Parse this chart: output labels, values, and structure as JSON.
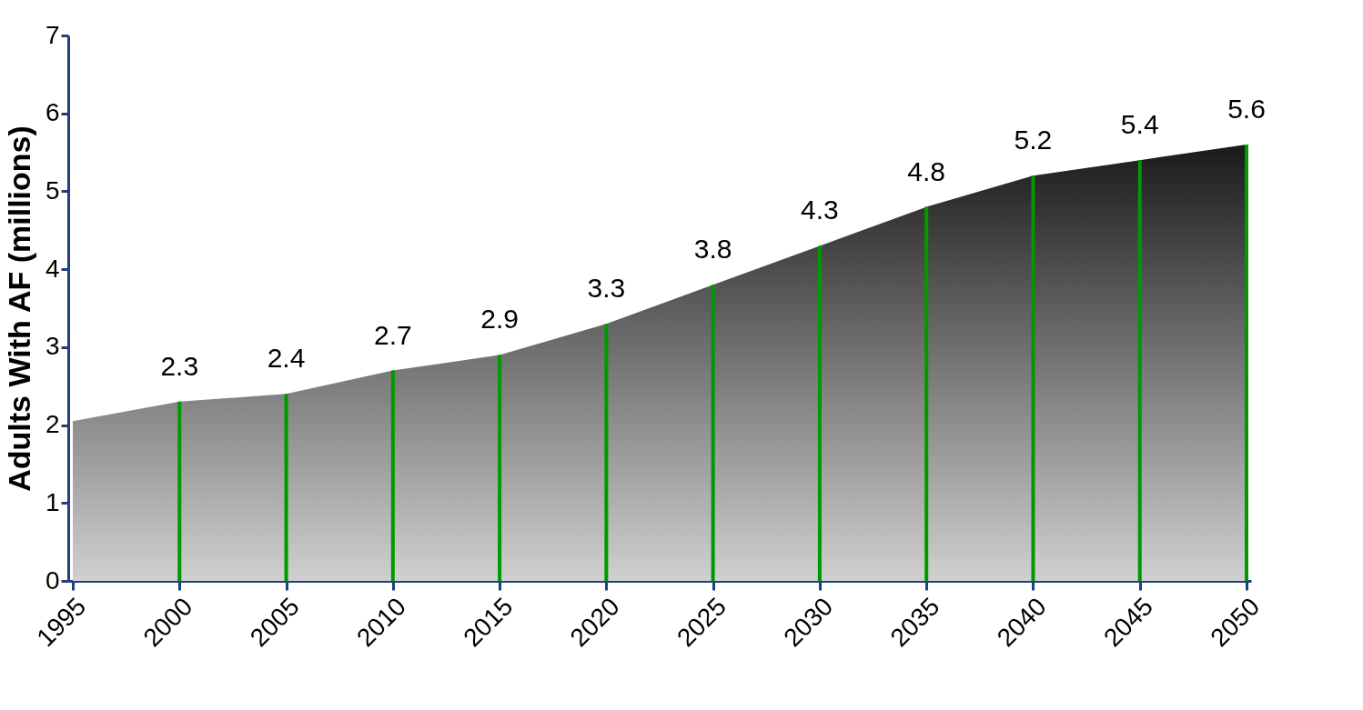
{
  "chart_data": {
    "type": "area",
    "ylabel": "Adults With AF (millions)",
    "x": [
      1995,
      2000,
      2005,
      2010,
      2015,
      2020,
      2025,
      2030,
      2035,
      2040,
      2045,
      2050
    ],
    "xlim": [
      1995,
      2050
    ],
    "xticks": [
      1995,
      2000,
      2005,
      2010,
      2015,
      2020,
      2025,
      2030,
      2035,
      2040,
      2045,
      2050
    ],
    "ylim": [
      0,
      7
    ],
    "yticks": [
      0,
      1,
      2,
      3,
      4,
      5,
      6,
      7
    ],
    "grid": false,
    "series": [
      {
        "color": "#1a1a1a",
        "values": [
          2.05,
          2.3,
          2.4,
          2.7,
          2.9,
          3.3,
          3.8,
          4.3,
          4.8,
          5.2,
          5.4,
          5.6
        ]
      },
      {
        "type": "bar",
        "color": "#009900",
        "values": [
          null,
          2.3,
          2.4,
          2.7,
          2.9,
          3.3,
          3.8,
          4.3,
          4.8,
          5.2,
          5.4,
          5.6
        ],
        "value_labels": [
          null,
          "2.3",
          "2.4",
          "2.7",
          "2.9",
          "3.3",
          "3.8",
          "4.3",
          "4.8",
          "5.2",
          "5.4",
          "5.6"
        ]
      }
    ]
  }
}
